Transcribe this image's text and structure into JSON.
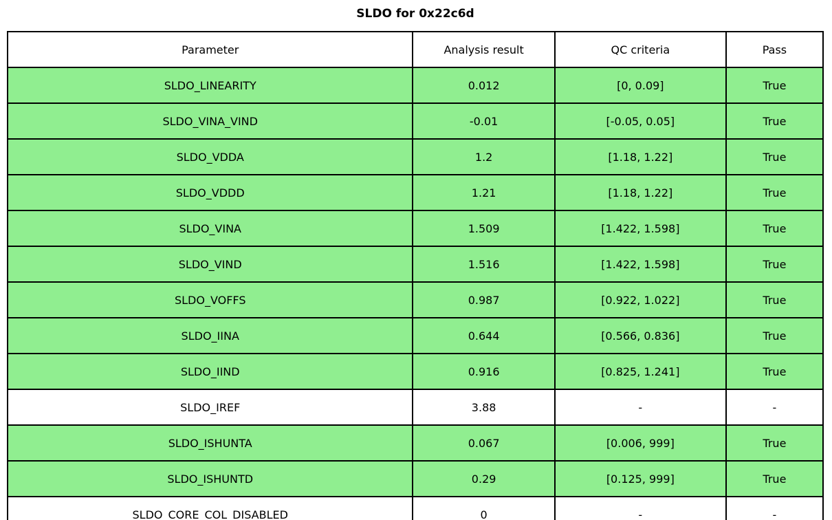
{
  "title": "SLDO for 0x22c6d",
  "colors": {
    "pass_green": "#90ee90",
    "border": "#000000",
    "background": "#ffffff"
  },
  "chart_data": {
    "type": "table",
    "title": "SLDO for 0x22c6d",
    "columns": [
      "Parameter",
      "Analysis result",
      "QC criteria",
      "Pass"
    ],
    "rows": [
      {
        "parameter": "SLDO_LINEARITY",
        "analysis_result": "0.012",
        "qc_criteria": "[0, 0.09]",
        "pass": "True",
        "highlight": true
      },
      {
        "parameter": "SLDO_VINA_VIND",
        "analysis_result": "-0.01",
        "qc_criteria": "[-0.05, 0.05]",
        "pass": "True",
        "highlight": true
      },
      {
        "parameter": "SLDO_VDDA",
        "analysis_result": "1.2",
        "qc_criteria": "[1.18, 1.22]",
        "pass": "True",
        "highlight": true
      },
      {
        "parameter": "SLDO_VDDD",
        "analysis_result": "1.21",
        "qc_criteria": "[1.18, 1.22]",
        "pass": "True",
        "highlight": true
      },
      {
        "parameter": "SLDO_VINA",
        "analysis_result": "1.509",
        "qc_criteria": "[1.422, 1.598]",
        "pass": "True",
        "highlight": true
      },
      {
        "parameter": "SLDO_VIND",
        "analysis_result": "1.516",
        "qc_criteria": "[1.422, 1.598]",
        "pass": "True",
        "highlight": true
      },
      {
        "parameter": "SLDO_VOFFS",
        "analysis_result": "0.987",
        "qc_criteria": "[0.922, 1.022]",
        "pass": "True",
        "highlight": true
      },
      {
        "parameter": "SLDO_IINA",
        "analysis_result": "0.644",
        "qc_criteria": "[0.566, 0.836]",
        "pass": "True",
        "highlight": true
      },
      {
        "parameter": "SLDO_IIND",
        "analysis_result": "0.916",
        "qc_criteria": "[0.825, 1.241]",
        "pass": "True",
        "highlight": true
      },
      {
        "parameter": "SLDO_IREF",
        "analysis_result": "3.88",
        "qc_criteria": "-",
        "pass": "-",
        "highlight": false
      },
      {
        "parameter": "SLDO_ISHUNTA",
        "analysis_result": "0.067",
        "qc_criteria": "[0.006, 999]",
        "pass": "True",
        "highlight": true
      },
      {
        "parameter": "SLDO_ISHUNTD",
        "analysis_result": "0.29",
        "qc_criteria": "[0.125, 999]",
        "pass": "True",
        "highlight": true
      },
      {
        "parameter": "SLDO_CORE_COL_DISABLED",
        "analysis_result": "0",
        "qc_criteria": "-",
        "pass": "-",
        "highlight": false
      }
    ]
  }
}
